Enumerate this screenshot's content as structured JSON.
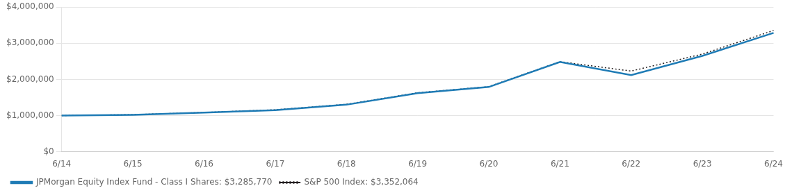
{
  "chart_data": {
    "type": "line",
    "categories": [
      "6/14",
      "6/15",
      "6/16",
      "6/17",
      "6/18",
      "6/19",
      "6/20",
      "6/21",
      "6/22",
      "6/23",
      "6/24"
    ],
    "series": [
      {
        "name": "JPMorgan Equity Index Fund - Class I Shares: $3,285,770",
        "color": "#1e7bb5",
        "line_style": "solid",
        "values": [
          1000000,
          1020000,
          1080000,
          1150000,
          1300000,
          1620000,
          1790000,
          2480000,
          2120000,
          2650000,
          3285770
        ]
      },
      {
        "name": "S&P 500 Index: $3,352,064",
        "color": "#231f20",
        "line_style": "dotted",
        "values": [
          1000000,
          1025000,
          1085000,
          1160000,
          1310000,
          1630000,
          1800000,
          2490000,
          2230000,
          2700000,
          3352064
        ]
      }
    ],
    "ylim": [
      0,
      4000000
    ],
    "yticks": [
      {
        "value": 0,
        "label": "$0"
      },
      {
        "value": 1000000,
        "label": "$1,000,000"
      },
      {
        "value": 2000000,
        "label": "$2,000,000"
      },
      {
        "value": 3000000,
        "label": "$3,000,000"
      },
      {
        "value": 4000000,
        "label": "$4,000,000"
      }
    ],
    "grid": true,
    "legend": "bottom"
  }
}
